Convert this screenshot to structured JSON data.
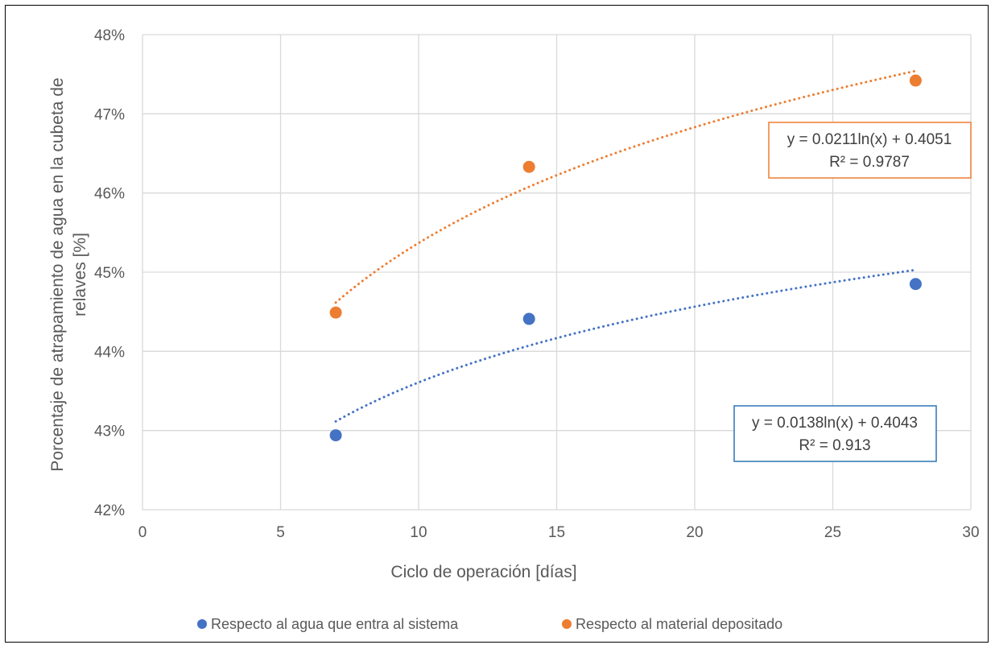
{
  "chart_data": {
    "type": "scatter",
    "title": "",
    "xlabel": "Ciclo de operación [días]",
    "ylabel_lines": [
      "Porcentaje de atrapamiento de agua en la cubeta de",
      "relaves [%]"
    ],
    "xlim": [
      0,
      30
    ],
    "ylim": [
      0.42,
      0.48
    ],
    "x_ticks": [
      "0",
      "5",
      "10",
      "15",
      "20",
      "25",
      "30"
    ],
    "y_ticks": [
      "42%",
      "43%",
      "44%",
      "45%",
      "46%",
      "47%",
      "48%"
    ],
    "grid": true,
    "legend_position": "bottom",
    "series": [
      {
        "name": "Respecto al agua que entra al sistema",
        "color": "#4472C4",
        "x": [
          7,
          14,
          28
        ],
        "y": [
          0.4294,
          0.4441,
          0.4485
        ],
        "trendline": {
          "type": "logarithmic",
          "a": 0.0138,
          "b": 0.4043,
          "x_range": [
            7,
            28
          ],
          "equation": "y = 0.0138ln(x) + 0.4043",
          "r2": "R² = 0.913"
        }
      },
      {
        "name": "Respecto al material depositado",
        "color": "#ED7D31",
        "x": [
          7,
          14,
          28
        ],
        "y": [
          0.4449,
          0.4633,
          0.4742
        ],
        "trendline": {
          "type": "logarithmic",
          "a": 0.0211,
          "b": 0.4051,
          "x_range": [
            7,
            28
          ],
          "equation": "y = 0.0211ln(x) + 0.4051",
          "r2": "R² = 0.9787"
        }
      }
    ]
  }
}
